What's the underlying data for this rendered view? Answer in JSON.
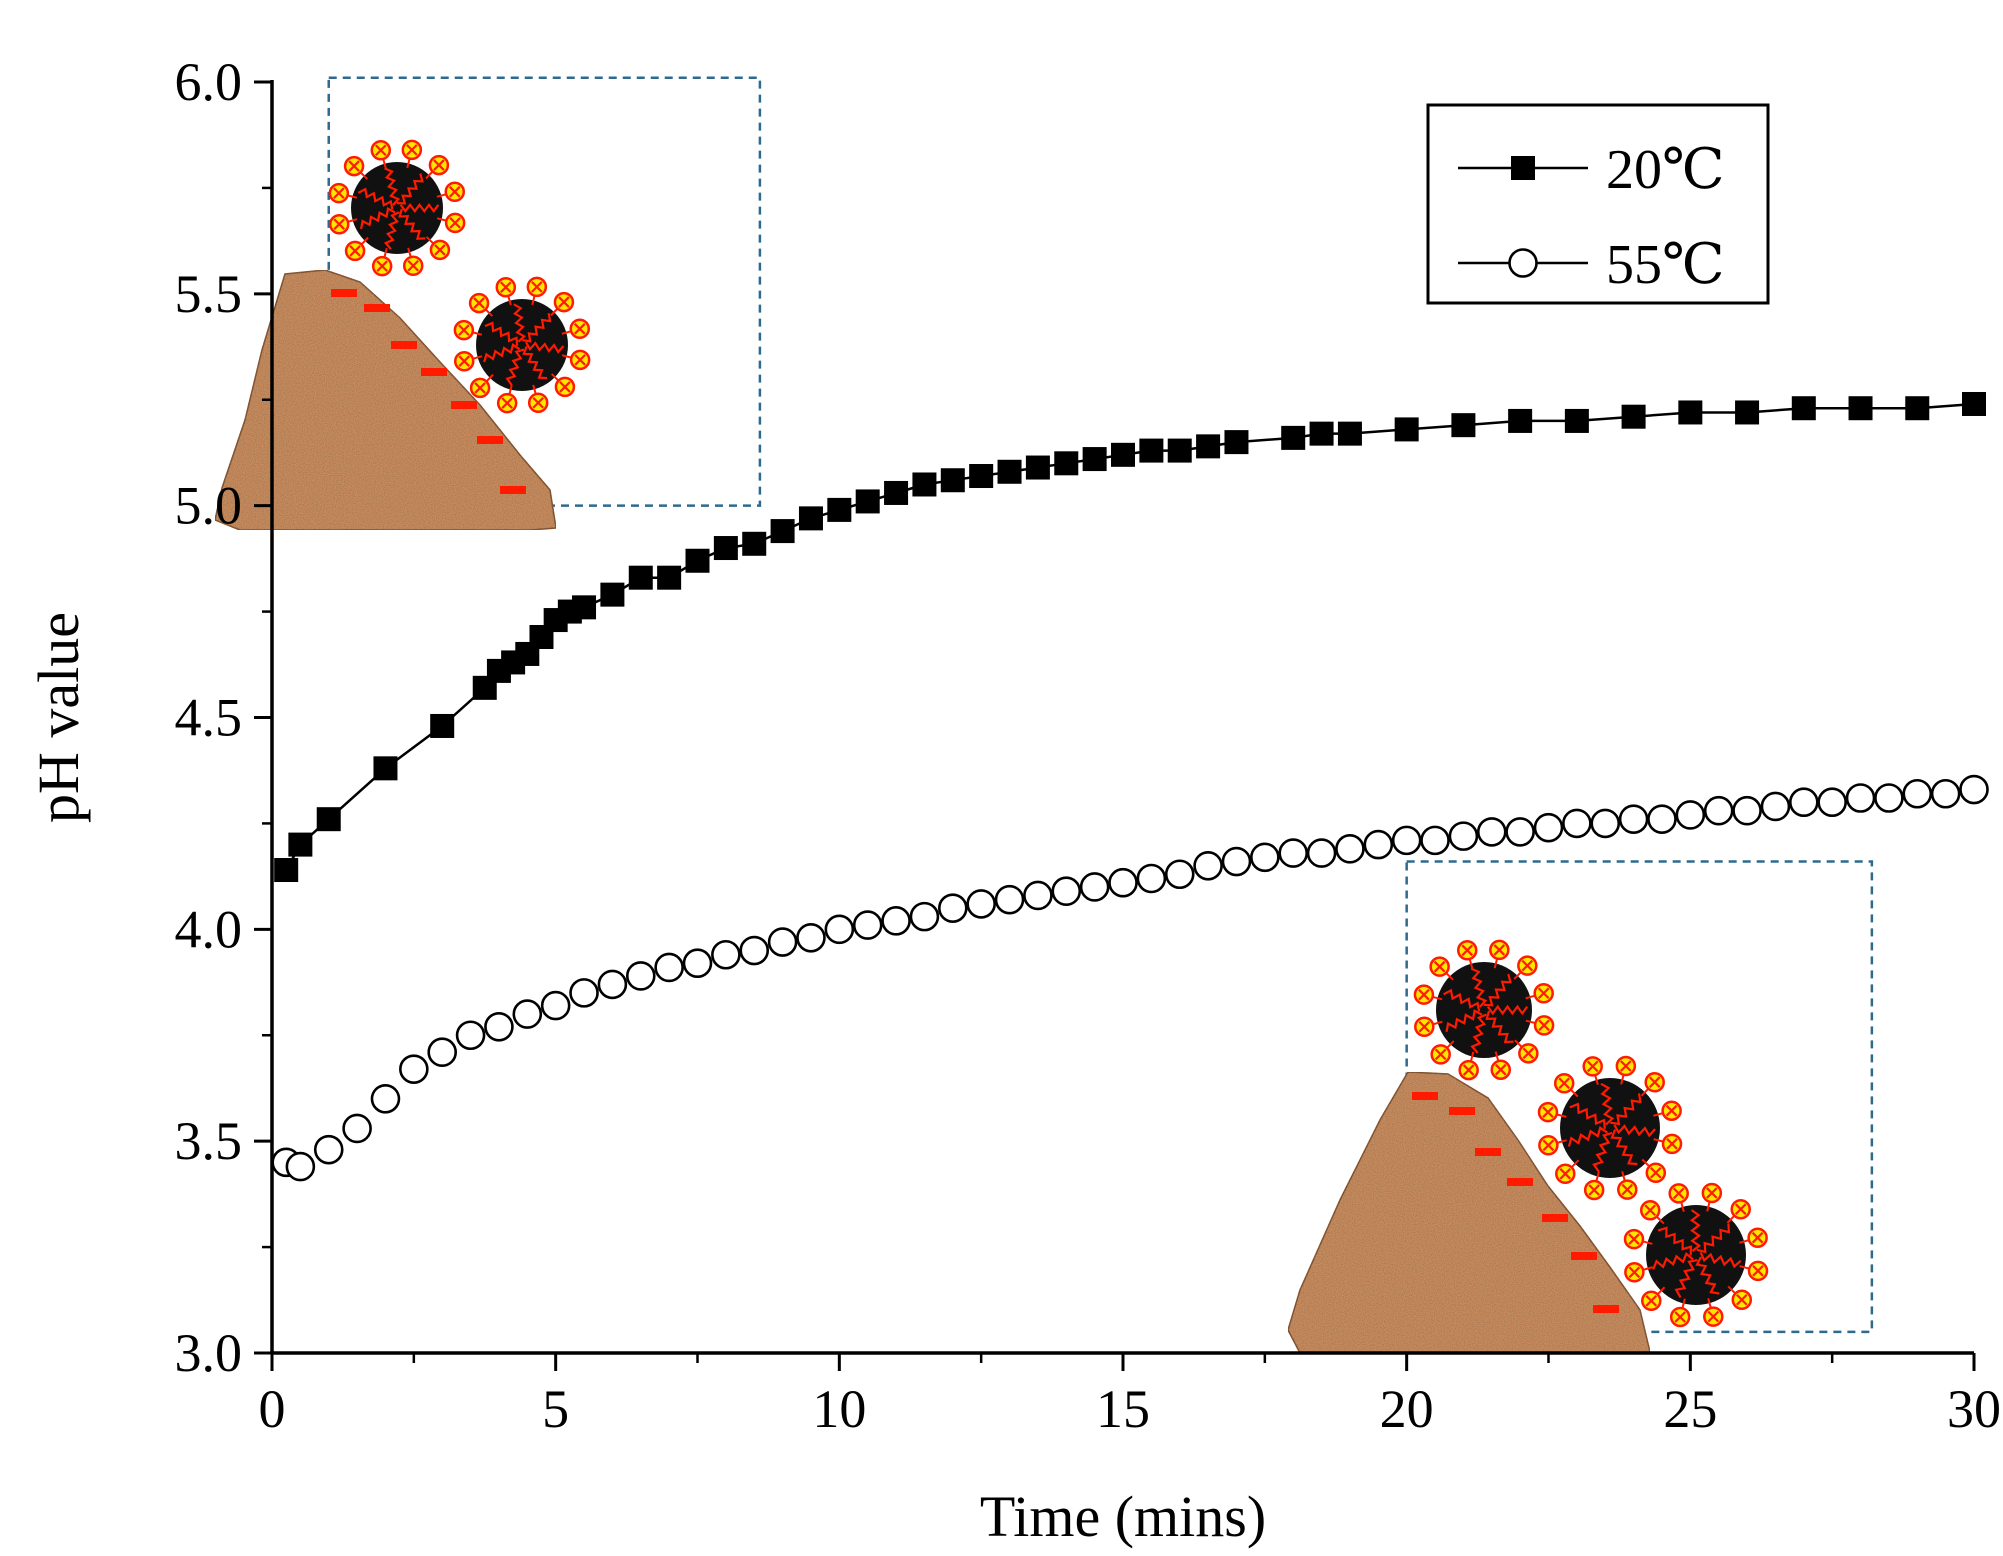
{
  "chart_data": {
    "type": "scatter",
    "title": "",
    "xlabel": "Time (mins)",
    "ylabel": "pH value",
    "xlim": [
      0,
      30
    ],
    "ylim": [
      3.0,
      6.0
    ],
    "x_major_ticks": [
      0,
      5,
      10,
      15,
      20,
      25,
      30
    ],
    "x_tick_labels": [
      "0",
      "5",
      "10",
      "15",
      "20",
      "25",
      "30"
    ],
    "y_major_ticks": [
      3.0,
      3.5,
      4.0,
      4.5,
      5.0,
      5.5,
      6.0
    ],
    "y_tick_labels": [
      "3.0",
      "3.5",
      "4.0",
      "4.5",
      "5.0",
      "5.5",
      "6.0"
    ],
    "grid": false,
    "legend_position": "top-right",
    "series": [
      {
        "name": "20℃",
        "marker": "filled-square",
        "line": true,
        "color": "#000000",
        "x": [
          0.25,
          0.5,
          1,
          2,
          3,
          3.75,
          4,
          4.25,
          4.5,
          4.75,
          5,
          5.25,
          5.5,
          6,
          6.5,
          7,
          7.5,
          8,
          8.5,
          9,
          9.5,
          10,
          10.5,
          11,
          11.5,
          12,
          12.5,
          13,
          13.5,
          14,
          14.5,
          15,
          15.5,
          16,
          16.5,
          17,
          18,
          18.5,
          19,
          20,
          21,
          22,
          23,
          24,
          25,
          26,
          27,
          28,
          29,
          30
        ],
        "y": [
          4.14,
          4.2,
          4.26,
          4.38,
          4.48,
          4.57,
          4.61,
          4.63,
          4.65,
          4.69,
          4.73,
          4.75,
          4.76,
          4.79,
          4.83,
          4.83,
          4.87,
          4.9,
          4.91,
          4.94,
          4.97,
          4.99,
          5.01,
          5.03,
          5.05,
          5.06,
          5.07,
          5.08,
          5.09,
          5.1,
          5.11,
          5.12,
          5.13,
          5.13,
          5.14,
          5.15,
          5.16,
          5.17,
          5.17,
          5.18,
          5.19,
          5.2,
          5.2,
          5.21,
          5.22,
          5.22,
          5.23,
          5.23,
          5.23,
          5.24
        ]
      },
      {
        "name": "55℃",
        "marker": "open-circle",
        "line": false,
        "color": "#000000",
        "x": [
          0.25,
          0.5,
          1,
          1.5,
          2,
          2.5,
          3,
          3.5,
          4,
          4.5,
          5,
          5.5,
          6,
          6.5,
          7,
          7.5,
          8,
          8.5,
          9,
          9.5,
          10,
          10.5,
          11,
          11.5,
          12,
          12.5,
          13,
          13.5,
          14,
          14.5,
          15,
          15.5,
          16,
          16.5,
          17,
          17.5,
          18,
          18.5,
          19,
          19.5,
          20,
          20.5,
          21,
          21.5,
          22,
          22.5,
          23,
          23.5,
          24,
          24.5,
          25,
          25.5,
          26,
          26.5,
          27,
          27.5,
          28,
          28.5,
          29,
          29.5,
          30
        ],
        "y": [
          3.45,
          3.44,
          3.48,
          3.53,
          3.6,
          3.67,
          3.71,
          3.75,
          3.77,
          3.8,
          3.82,
          3.85,
          3.87,
          3.89,
          3.91,
          3.92,
          3.94,
          3.95,
          3.97,
          3.98,
          4.0,
          4.01,
          4.02,
          4.03,
          4.05,
          4.06,
          4.07,
          4.08,
          4.09,
          4.1,
          4.11,
          4.12,
          4.13,
          4.15,
          4.16,
          4.17,
          4.18,
          4.18,
          4.19,
          4.2,
          4.21,
          4.21,
          4.22,
          4.23,
          4.23,
          4.24,
          4.25,
          4.25,
          4.26,
          4.26,
          4.27,
          4.28,
          4.28,
          4.29,
          4.3,
          4.3,
          4.31,
          4.31,
          4.32,
          4.32,
          4.33
        ]
      }
    ],
    "annotations": [
      {
        "kind": "schematic-inset",
        "location": "upper-left",
        "description": "particles adsorbing on a mineral surface",
        "x_range": [
          1.0,
          8.6
        ],
        "y_range": [
          5.0,
          6.01
        ],
        "particles": 2,
        "charges": 7
      },
      {
        "kind": "schematic-inset",
        "location": "lower-right",
        "description": "particles adsorbing on a mineral surface",
        "x_range": [
          20.0,
          28.2
        ],
        "y_range": [
          3.05,
          4.16
        ],
        "particles": 3,
        "charges": 7
      }
    ]
  },
  "colors": {
    "axis": "#000000",
    "inset_border": "#2e6a8e",
    "rock_base": "#c98c5e",
    "rock_dark": "#7a4a2a",
    "rock_light": "#e9b48a",
    "negative_charge": "#ff1a00",
    "particle_core": "#111111",
    "particle_ligand": "#ff1a00",
    "positive_charge_fill": "#ffe600",
    "positive_charge_stroke": "#ff1a00"
  }
}
